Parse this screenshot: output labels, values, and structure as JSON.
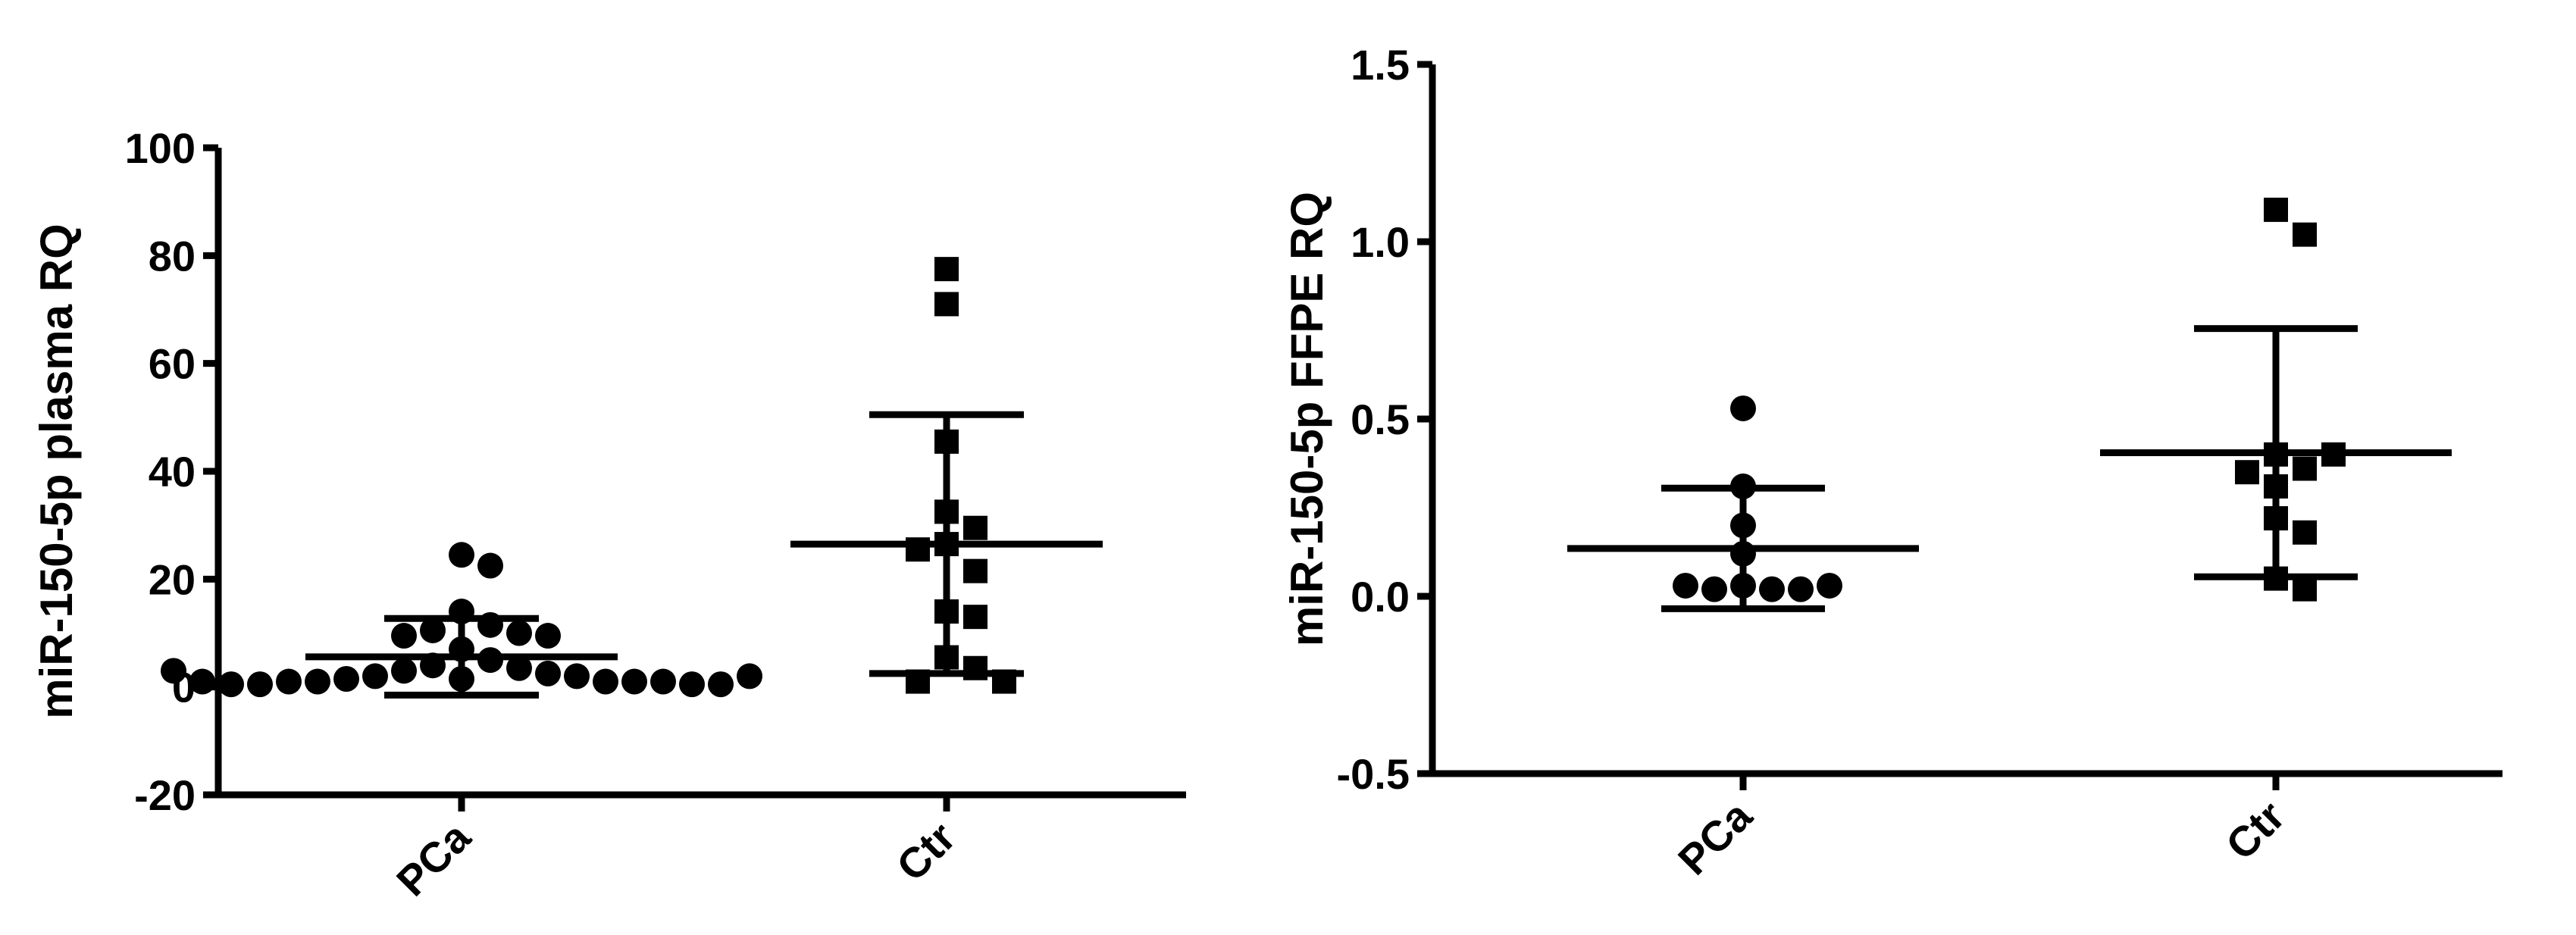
{
  "chart_data": [
    {
      "type": "scatter",
      "ylabel": "miR-150-5p plasma RQ",
      "categories": [
        "PCa",
        "Ctr"
      ],
      "ylim": [
        -20,
        100
      ],
      "yticks": [
        -20,
        0,
        20,
        40,
        60,
        80,
        100
      ],
      "groups": [
        {
          "marker": "circle",
          "values": [
            24.5,
            22.5,
            14,
            11.5,
            10.5,
            10,
            9.5,
            9.5,
            7,
            5,
            4,
            3.5,
            3,
            2.5,
            2,
            2,
            1.5,
            1.5,
            1,
            1,
            1,
            1,
            1,
            0.5,
            0.5,
            0.5,
            0.5,
            1,
            2,
            3
          ],
          "mean": 5.6,
          "sd": 7.1
        },
        {
          "marker": "square",
          "values": [
            77.5,
            71,
            45.5,
            32.5,
            29.5,
            26.5,
            25.5,
            21.5,
            14,
            13,
            5.5,
            3.5,
            1,
            1
          ],
          "mean": 26.5,
          "sd": 24
        }
      ]
    },
    {
      "type": "scatter",
      "ylabel": "miR-150-5p FFPE RQ",
      "categories": [
        "PCa",
        "Ctr"
      ],
      "ylim": [
        -0.5,
        1.5
      ],
      "yticks": [
        {
          "value": -0.5,
          "label": "-0.5"
        },
        {
          "value": 0,
          "label": "0.0"
        },
        {
          "value": 0.5,
          "label": "0.5"
        },
        {
          "value": 1,
          "label": "1.0"
        },
        {
          "value": 1.5,
          "label": "1.5"
        }
      ],
      "groups": [
        {
          "marker": "circle",
          "values": [
            0.53,
            0.31,
            0.2,
            0.12,
            0.03,
            0.02,
            0.02,
            0.02,
            0.03,
            0.03
          ],
          "mean": 0.135,
          "sd": 0.17
        },
        {
          "marker": "square",
          "values": [
            1.09,
            1.02,
            0.4,
            0.36,
            0.31,
            0.35,
            0.4,
            0.22,
            0.18,
            0.05,
            0.02
          ],
          "mean": 0.405,
          "sd": 0.35
        }
      ]
    }
  ]
}
